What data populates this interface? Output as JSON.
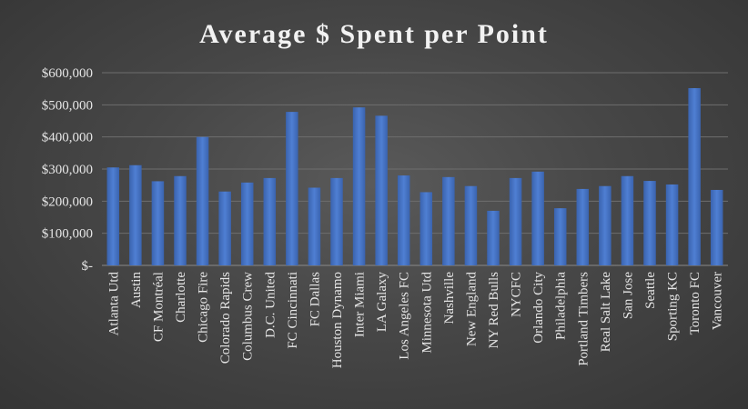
{
  "chart_data": {
    "type": "bar",
    "title": "Average $ Spent per Point",
    "xlabel": "",
    "ylabel": "",
    "categories": [
      "Atlanta Utd",
      "Austin",
      "CF Montréal",
      "Charlotte",
      "Chicago Fire",
      "Colorado Rapids",
      "Columbus Crew",
      "D.C. United",
      "FC Cincinnati",
      "FC Dallas",
      "Houston Dynamo",
      "Inter Miami",
      "LA Galaxy",
      "Los Angeles FC",
      "Minnesota Utd",
      "Nashville",
      "New England",
      "NY Red Bulls",
      "NYCFC",
      "Orlando City",
      "Philadelphia",
      "Portland Timbers",
      "Real Salt Lake",
      "San Jose",
      "Seattle",
      "Sporting KC",
      "Toronto FC",
      "Vancouver"
    ],
    "values": [
      305000,
      312000,
      262000,
      278000,
      400000,
      230000,
      258000,
      272000,
      478000,
      242000,
      272000,
      492000,
      466000,
      280000,
      228000,
      275000,
      247000,
      170000,
      272000,
      292000,
      178000,
      238000,
      247000,
      278000,
      263000,
      252000,
      552000,
      235000
    ],
    "ylim": [
      0,
      600000
    ],
    "yticks": [
      0,
      100000,
      200000,
      300000,
      400000,
      500000,
      600000
    ],
    "ytick_labels": [
      "$-",
      "$100,000",
      "$200,000",
      "$300,000",
      "$400,000",
      "$500,000",
      "$600,000"
    ],
    "grid": true,
    "legend": "none",
    "bar_color": "#4472c4"
  }
}
